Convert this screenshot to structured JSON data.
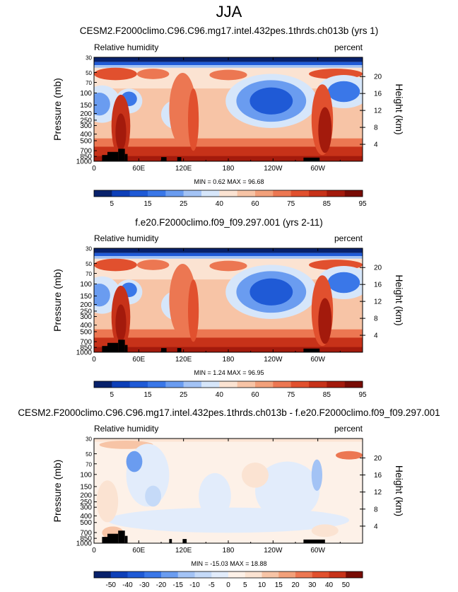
{
  "main_title": "JJA",
  "colors": {
    "abs_scale": [
      "#08216b",
      "#0d3fb8",
      "#1f5ad6",
      "#3a77e8",
      "#6a9cf0",
      "#a3c3f5",
      "#d6e6fa",
      "#fbe3d2",
      "#f7c4a6",
      "#f2a07a",
      "#ec7752",
      "#e1502e",
      "#c73219",
      "#a31a0c",
      "#780c05"
    ],
    "diff_scale": [
      "#08216b",
      "#0d3fb8",
      "#1f5ad6",
      "#3a77e8",
      "#6a9cf0",
      "#a3c3f5",
      "#c5daf8",
      "#e2ecfb",
      "#fdf1e8",
      "#fbe3d2",
      "#f7c4a6",
      "#f2a07a",
      "#ec7752",
      "#e1502e",
      "#c73219",
      "#780c05"
    ],
    "topography": "#000000"
  },
  "chart_data": [
    {
      "type": "heatmap",
      "title": "CESM2.F2000climo.C96.C96.mg17.intel.432pes.1thrds.ch013b (yrs 1)",
      "left_label": "Relative humidity",
      "right_label": "percent",
      "ylabel": "Pressure (mb)",
      "ylabel_right": "Height (km)",
      "x_ticks": [
        "0",
        "60E",
        "120E",
        "180",
        "120W",
        "60W"
      ],
      "x_tick_values": [
        0,
        60,
        120,
        180,
        240,
        300
      ],
      "xlim": [
        0,
        360
      ],
      "y_ticks": [
        "30",
        "50",
        "70",
        "100",
        "150",
        "200",
        "250",
        "300",
        "400",
        "500",
        "700",
        "850",
        "1000"
      ],
      "y_tick_values": [
        30,
        50,
        70,
        100,
        150,
        200,
        250,
        300,
        400,
        500,
        700,
        850,
        1000
      ],
      "ylim": [
        30,
        1000
      ],
      "height_ticks": [
        "20",
        "16",
        "12",
        "8",
        "4"
      ],
      "height_tick_values": [
        20,
        16,
        12,
        8,
        4
      ],
      "stats": "MIN =  0.62  MAX = 96.68",
      "colorbar_levels": [
        "5",
        "15",
        "25",
        "40",
        "60",
        "75",
        "85",
        "95"
      ],
      "colorbar_kind": "abs"
    },
    {
      "type": "heatmap",
      "title": "f.e20.F2000climo.f09_f09.297.001 (yrs 2-11)",
      "left_label": "Relative humidity",
      "right_label": "percent",
      "ylabel": "Pressure (mb)",
      "ylabel_right": "Height (km)",
      "x_ticks": [
        "0",
        "60E",
        "120E",
        "180",
        "120W",
        "60W"
      ],
      "x_tick_values": [
        0,
        60,
        120,
        180,
        240,
        300
      ],
      "xlim": [
        0,
        360
      ],
      "y_ticks": [
        "30",
        "50",
        "70",
        "100",
        "150",
        "200",
        "250",
        "300",
        "400",
        "500",
        "700",
        "850",
        "1000"
      ],
      "y_tick_values": [
        30,
        50,
        70,
        100,
        150,
        200,
        250,
        300,
        400,
        500,
        700,
        850,
        1000
      ],
      "ylim": [
        30,
        1000
      ],
      "height_ticks": [
        "20",
        "16",
        "12",
        "8",
        "4"
      ],
      "height_tick_values": [
        20,
        16,
        12,
        8,
        4
      ],
      "stats": "MIN =  1.24  MAX = 96.95",
      "colorbar_levels": [
        "5",
        "15",
        "25",
        "40",
        "60",
        "75",
        "85",
        "95"
      ],
      "colorbar_kind": "abs"
    },
    {
      "type": "heatmap",
      "title": "CESM2.F2000climo.C96.C96.mg17.intel.432pes.1thrds.ch013b - f.e20.F2000climo.f09_f09.297.001",
      "left_label": "Relative humidity",
      "right_label": "percent",
      "ylabel": "Pressure (mb)",
      "ylabel_right": "Height (km)",
      "x_ticks": [
        "0",
        "60E",
        "120E",
        "180",
        "120W",
        "60W"
      ],
      "x_tick_values": [
        0,
        60,
        120,
        180,
        240,
        300
      ],
      "xlim": [
        0,
        360
      ],
      "y_ticks": [
        "30",
        "50",
        "70",
        "100",
        "150",
        "200",
        "250",
        "300",
        "400",
        "500",
        "700",
        "850",
        "1000"
      ],
      "y_tick_values": [
        30,
        50,
        70,
        100,
        150,
        200,
        250,
        300,
        400,
        500,
        700,
        850,
        1000
      ],
      "ylim": [
        30,
        1000
      ],
      "height_ticks": [
        "20",
        "16",
        "12",
        "8",
        "4"
      ],
      "height_tick_values": [
        20,
        16,
        12,
        8,
        4
      ],
      "stats": "MIN = -15.03  MAX = 18.88",
      "colorbar_levels": [
        "-50",
        "-40",
        "-30",
        "-20",
        "-15",
        "-10",
        "-5",
        "0",
        "5",
        "10",
        "15",
        "20",
        "30",
        "40",
        "50"
      ],
      "colorbar_kind": "diff"
    }
  ]
}
